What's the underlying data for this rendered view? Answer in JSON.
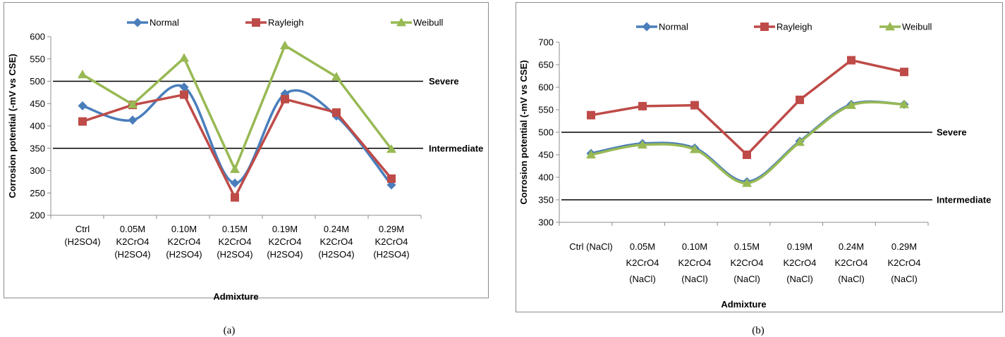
{
  "chart_data": [
    {
      "type": "line",
      "caption": "(a)",
      "xlabel": "Admixture",
      "ylabel": "Corrosion potential (-mV vs CSE)",
      "ylim": [
        200,
        600
      ],
      "yticks": [
        200,
        250,
        300,
        350,
        400,
        450,
        500,
        550,
        600
      ],
      "grid": false,
      "legend_position": "top",
      "categories": [
        [
          "Ctrl",
          "(H2SO4)"
        ],
        [
          "0.05M",
          "K2CrO4",
          "(H2SO4)"
        ],
        [
          "0.10M",
          "K2CrO4",
          "(H2SO4)"
        ],
        [
          "0.15M",
          "K2CrO4",
          "(H2SO4)"
        ],
        [
          "0.19M",
          "K2CrO4",
          "(H2SO4)"
        ],
        [
          "0.24M",
          "K2CrO4",
          "(H2SO4)"
        ],
        [
          "0.29M",
          "K2CrO4",
          "(H2SO4)"
        ]
      ],
      "series": [
        {
          "name": "Normal",
          "color": "#4a7ebb",
          "marker": "diamond",
          "smooth": true,
          "values": [
            445,
            413,
            487,
            272,
            472,
            422,
            268
          ]
        },
        {
          "name": "Rayleigh",
          "color": "#be4b48",
          "marker": "square",
          "smooth": false,
          "values": [
            410,
            447,
            470,
            240,
            460,
            430,
            282
          ]
        },
        {
          "name": "Weibull",
          "color": "#98b954",
          "marker": "triangle",
          "smooth": false,
          "values": [
            515,
            448,
            552,
            303,
            580,
            510,
            348
          ]
        }
      ],
      "reference_lines": [
        {
          "value": 500,
          "label": "Severe"
        },
        {
          "value": 350,
          "label": "Intermediate"
        }
      ]
    },
    {
      "type": "line",
      "caption": "(b)",
      "xlabel": "Admixture",
      "ylabel": "Corrosion potential (-mV vs CSE)",
      "ylim": [
        300,
        700
      ],
      "yticks": [
        300,
        350,
        400,
        450,
        500,
        550,
        600,
        650,
        700
      ],
      "grid": false,
      "legend_position": "top",
      "categories": [
        [
          "Ctrl (NaCl)"
        ],
        [
          "0.05M",
          "K2CrO4",
          "(NaCl)"
        ],
        [
          "0.10M",
          "K2CrO4",
          "(NaCl)"
        ],
        [
          "0.15M",
          "K2CrO4",
          "(NaCl)"
        ],
        [
          "0.19M",
          "K2CrO4",
          "(NaCl)"
        ],
        [
          "0.24M",
          "K2CrO4",
          "(NaCl)"
        ],
        [
          "0.29M",
          "K2CrO4",
          "(NaCl)"
        ]
      ],
      "series": [
        {
          "name": "Normal",
          "color": "#4a7ebb",
          "marker": "diamond",
          "smooth": true,
          "values": [
            453,
            475,
            465,
            390,
            480,
            562,
            562
          ]
        },
        {
          "name": "Rayleigh",
          "color": "#be4b48",
          "marker": "square",
          "smooth": false,
          "values": [
            538,
            558,
            560,
            450,
            572,
            660,
            634
          ]
        },
        {
          "name": "Weibull",
          "color": "#98b954",
          "marker": "triangle",
          "smooth": true,
          "values": [
            450,
            472,
            462,
            387,
            478,
            560,
            562
          ]
        }
      ],
      "reference_lines": [
        {
          "value": 500,
          "label": "Severe"
        },
        {
          "value": 350,
          "label": "Intermediate"
        }
      ]
    }
  ]
}
